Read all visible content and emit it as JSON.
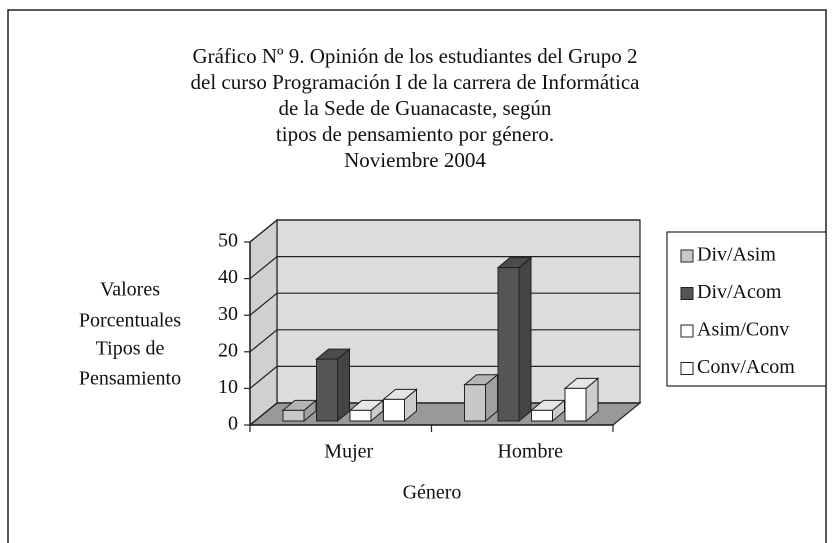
{
  "chart_data": {
    "type": "bar3d",
    "title": [
      "Gráfico Nº 9. Opinión de los estudiantes del Grupo 2",
      "del curso Programación I de la carrera de Informática",
      "de la Sede de Guanacaste, según",
      "tipos de pensamiento por género.",
      "Noviembre 2004"
    ],
    "ylabel": [
      "Valores",
      "Porcentuales",
      "Tipos de",
      "Pensamiento"
    ],
    "xlabel": "Género",
    "categories": [
      "Mujer",
      "Hombre"
    ],
    "series": [
      {
        "name": "Div/Asim",
        "color": "#c8c8c8",
        "values": [
          4,
          11
        ]
      },
      {
        "name": "Div/Acom",
        "color": "#555555",
        "values": [
          18,
          43
        ]
      },
      {
        "name": "Asim/Conv",
        "color": "#ffffff",
        "values": [
          4,
          4
        ]
      },
      {
        "name": "Conv/Acom",
        "color": "#ffffff",
        "values": [
          7,
          10
        ]
      }
    ],
    "ylim": [
      0,
      50
    ],
    "yticks": [
      0,
      10,
      20,
      30,
      40,
      50
    ],
    "grid": true,
    "legend": "right"
  }
}
